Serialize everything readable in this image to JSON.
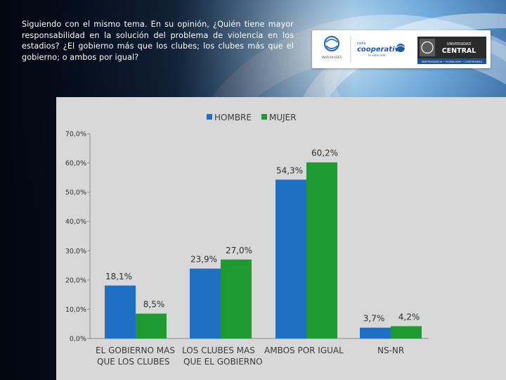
{
  "question": "Siguiendo con el mismo tema. En su opinión, ¿Quién tiene mayor responsabilidad en la solución del problema de violencia en los estadios? ¿El gobierno más que los clubes; los clubes más que el gobierno; o ambos por igual?",
  "logos": {
    "inap_caption": "INAP/ARUDES",
    "radio_small": "radio",
    "radio_name": "cooperativa",
    "radio_tagline": "la radio más",
    "universidad_line1": "UNIVERSIDAD",
    "universidad_line2": "CENTRAL",
    "universidad_motto": "INDEPENDENCIA • PLURALISMO • COMPROMISO"
  },
  "colors": {
    "hombre": "#1f6fc4",
    "mujer": "#1f9a32",
    "plot_bg": "#d8d8d8",
    "text": "#333333"
  },
  "chart_data": {
    "type": "bar",
    "categories": [
      [
        "EL GOBIERNO MAS",
        "QUE LOS CLUBES"
      ],
      [
        "LOS CLUBES MAS",
        "QUE EL GOBIERNO"
      ],
      [
        "AMBOS POR IGUAL"
      ],
      [
        "NS-NR"
      ]
    ],
    "series": [
      {
        "name": "HOMBRE",
        "values": [
          18.1,
          23.9,
          54.3,
          3.7
        ],
        "labels": [
          "18,1%",
          "23,9%",
          "54,3%",
          "3,7%"
        ]
      },
      {
        "name": "MUJER",
        "values": [
          8.5,
          27.0,
          60.2,
          4.2
        ],
        "labels": [
          "8,5%",
          "27,0%",
          "60,2%",
          "4,2%"
        ]
      }
    ],
    "yticks": [
      "0,0%",
      "10,0%",
      "20,0%",
      "30,0%",
      "40,0%",
      "50,0%",
      "60,0%",
      "70,0%"
    ],
    "ylim": [
      0,
      70
    ],
    "legend": "top",
    "grid": false
  }
}
